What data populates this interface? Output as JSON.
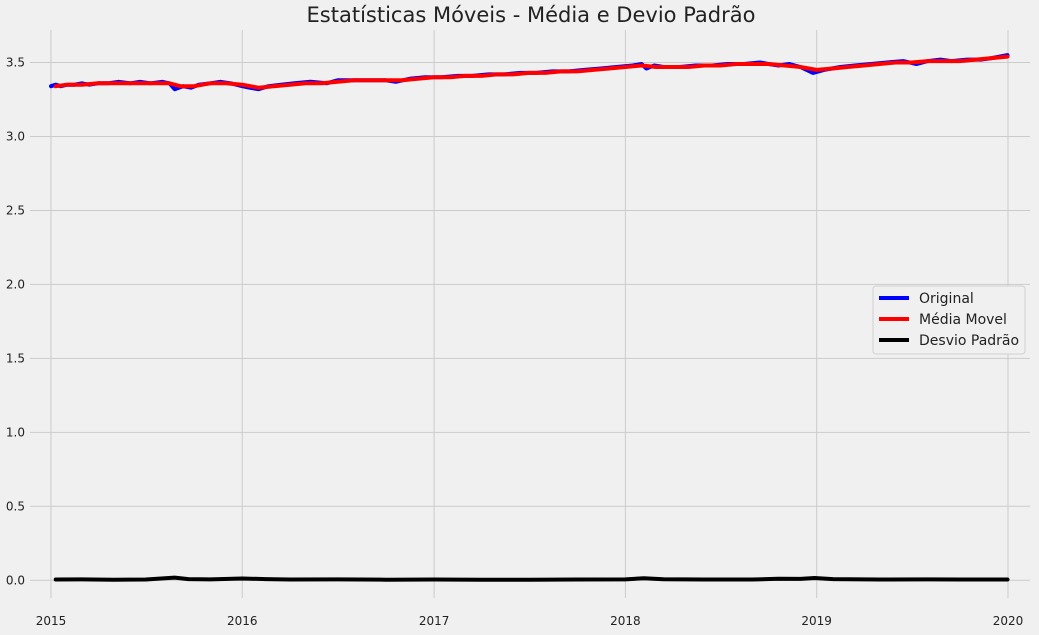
{
  "chart_data": {
    "type": "line",
    "title": "Estatísticas Móveis - Média e Devio Padrão",
    "xlabel": "",
    "ylabel": "",
    "x_axis": {
      "type": "date",
      "range": [
        "2014-11-22",
        "2020-02-12"
      ],
      "ticks": [
        {
          "value": "2015-01-01",
          "label": "2015"
        },
        {
          "value": "2016-01-01",
          "label": "2016"
        },
        {
          "value": "2017-01-01",
          "label": "2017"
        },
        {
          "value": "2018-01-01",
          "label": "2018"
        },
        {
          "value": "2019-01-01",
          "label": "2019"
        },
        {
          "value": "2020-01-01",
          "label": "2020"
        }
      ]
    },
    "y_axis": {
      "range": [
        -0.12,
        3.72
      ],
      "ticks": [
        {
          "value": 0.0,
          "label": "0.0"
        },
        {
          "value": 0.5,
          "label": "0.5"
        },
        {
          "value": 1.0,
          "label": "1.0"
        },
        {
          "value": 1.5,
          "label": "1.5"
        },
        {
          "value": 2.0,
          "label": "2.0"
        },
        {
          "value": 2.5,
          "label": "2.5"
        },
        {
          "value": 3.0,
          "label": "3.0"
        },
        {
          "value": 3.5,
          "label": "3.5"
        }
      ]
    },
    "grid": true,
    "legend": {
      "position": "center-right"
    },
    "series": [
      {
        "name": "Original",
        "color": "#0000ff",
        "points": [
          [
            "2015-01-01",
            3.34
          ],
          [
            "2015-01-10",
            3.35
          ],
          [
            "2015-01-20",
            3.34
          ],
          [
            "2015-02-01",
            3.35
          ],
          [
            "2015-02-15",
            3.35
          ],
          [
            "2015-03-01",
            3.36
          ],
          [
            "2015-03-15",
            3.35
          ],
          [
            "2015-04-01",
            3.36
          ],
          [
            "2015-04-20",
            3.36
          ],
          [
            "2015-05-10",
            3.37
          ],
          [
            "2015-06-01",
            3.36
          ],
          [
            "2015-06-20",
            3.37
          ],
          [
            "2015-07-10",
            3.36
          ],
          [
            "2015-08-01",
            3.37
          ],
          [
            "2015-08-15",
            3.36
          ],
          [
            "2015-08-25",
            3.32
          ],
          [
            "2015-09-10",
            3.34
          ],
          [
            "2015-09-25",
            3.33
          ],
          [
            "2015-10-10",
            3.35
          ],
          [
            "2015-11-01",
            3.36
          ],
          [
            "2015-11-20",
            3.37
          ],
          [
            "2015-12-10",
            3.36
          ],
          [
            "2016-01-01",
            3.34
          ],
          [
            "2016-01-15",
            3.33
          ],
          [
            "2016-02-01",
            3.32
          ],
          [
            "2016-02-20",
            3.34
          ],
          [
            "2016-03-15",
            3.35
          ],
          [
            "2016-04-10",
            3.36
          ],
          [
            "2016-05-10",
            3.37
          ],
          [
            "2016-06-10",
            3.36
          ],
          [
            "2016-07-01",
            3.38
          ],
          [
            "2016-08-01",
            3.38
          ],
          [
            "2016-09-01",
            3.38
          ],
          [
            "2016-10-01",
            3.38
          ],
          [
            "2016-10-20",
            3.37
          ],
          [
            "2016-11-15",
            3.39
          ],
          [
            "2016-12-15",
            3.4
          ],
          [
            "2017-01-15",
            3.4
          ],
          [
            "2017-02-15",
            3.41
          ],
          [
            "2017-03-15",
            3.41
          ],
          [
            "2017-04-15",
            3.42
          ],
          [
            "2017-05-15",
            3.42
          ],
          [
            "2017-06-15",
            3.43
          ],
          [
            "2017-07-15",
            3.43
          ],
          [
            "2017-08-15",
            3.44
          ],
          [
            "2017-09-15",
            3.44
          ],
          [
            "2017-10-15",
            3.45
          ],
          [
            "2017-11-15",
            3.46
          ],
          [
            "2017-12-15",
            3.47
          ],
          [
            "2018-01-15",
            3.48
          ],
          [
            "2018-02-01",
            3.49
          ],
          [
            "2018-02-10",
            3.46
          ],
          [
            "2018-02-25",
            3.48
          ],
          [
            "2018-03-15",
            3.47
          ],
          [
            "2018-04-15",
            3.47
          ],
          [
            "2018-05-15",
            3.48
          ],
          [
            "2018-06-15",
            3.48
          ],
          [
            "2018-07-15",
            3.49
          ],
          [
            "2018-08-15",
            3.49
          ],
          [
            "2018-09-15",
            3.5
          ],
          [
            "2018-10-01",
            3.49
          ],
          [
            "2018-10-20",
            3.48
          ],
          [
            "2018-11-10",
            3.49
          ],
          [
            "2018-12-01",
            3.47
          ],
          [
            "2018-12-25",
            3.43
          ],
          [
            "2019-01-15",
            3.45
          ],
          [
            "2019-02-15",
            3.47
          ],
          [
            "2019-03-15",
            3.48
          ],
          [
            "2019-04-15",
            3.49
          ],
          [
            "2019-05-15",
            3.5
          ],
          [
            "2019-06-15",
            3.51
          ],
          [
            "2019-07-10",
            3.49
          ],
          [
            "2019-08-01",
            3.51
          ],
          [
            "2019-08-25",
            3.52
          ],
          [
            "2019-09-15",
            3.51
          ],
          [
            "2019-10-15",
            3.52
          ],
          [
            "2019-11-10",
            3.52
          ],
          [
            "2019-12-01",
            3.53
          ],
          [
            "2019-12-31",
            3.55
          ]
        ]
      },
      {
        "name": "Média Movel",
        "color": "#ff0000",
        "points": [
          [
            "2015-01-10",
            3.34
          ],
          [
            "2015-02-01",
            3.35
          ],
          [
            "2015-03-01",
            3.35
          ],
          [
            "2015-04-01",
            3.36
          ],
          [
            "2015-05-01",
            3.36
          ],
          [
            "2015-06-01",
            3.36
          ],
          [
            "2015-07-01",
            3.36
          ],
          [
            "2015-08-15",
            3.36
          ],
          [
            "2015-09-05",
            3.34
          ],
          [
            "2015-10-01",
            3.34
          ],
          [
            "2015-11-01",
            3.36
          ],
          [
            "2015-12-01",
            3.36
          ],
          [
            "2016-01-01",
            3.35
          ],
          [
            "2016-02-01",
            3.33
          ],
          [
            "2016-03-01",
            3.34
          ],
          [
            "2016-04-01",
            3.35
          ],
          [
            "2016-05-01",
            3.36
          ],
          [
            "2016-06-01",
            3.36
          ],
          [
            "2016-07-01",
            3.37
          ],
          [
            "2016-08-01",
            3.38
          ],
          [
            "2016-09-01",
            3.38
          ],
          [
            "2016-10-01",
            3.38
          ],
          [
            "2016-11-01",
            3.38
          ],
          [
            "2016-12-01",
            3.39
          ],
          [
            "2017-01-01",
            3.4
          ],
          [
            "2017-02-01",
            3.4
          ],
          [
            "2017-03-01",
            3.41
          ],
          [
            "2017-04-01",
            3.41
          ],
          [
            "2017-05-01",
            3.42
          ],
          [
            "2017-06-01",
            3.42
          ],
          [
            "2017-07-01",
            3.43
          ],
          [
            "2017-08-01",
            3.43
          ],
          [
            "2017-09-01",
            3.44
          ],
          [
            "2017-10-01",
            3.44
          ],
          [
            "2017-11-01",
            3.45
          ],
          [
            "2017-12-01",
            3.46
          ],
          [
            "2018-01-01",
            3.47
          ],
          [
            "2018-02-01",
            3.48
          ],
          [
            "2018-03-01",
            3.47
          ],
          [
            "2018-04-01",
            3.47
          ],
          [
            "2018-05-01",
            3.47
          ],
          [
            "2018-06-01",
            3.48
          ],
          [
            "2018-07-01",
            3.48
          ],
          [
            "2018-08-01",
            3.49
          ],
          [
            "2018-09-01",
            3.49
          ],
          [
            "2018-10-01",
            3.49
          ],
          [
            "2018-11-01",
            3.48
          ],
          [
            "2018-12-01",
            3.47
          ],
          [
            "2019-01-01",
            3.45
          ],
          [
            "2019-02-01",
            3.46
          ],
          [
            "2019-03-01",
            3.47
          ],
          [
            "2019-04-01",
            3.48
          ],
          [
            "2019-05-01",
            3.49
          ],
          [
            "2019-06-01",
            3.5
          ],
          [
            "2019-07-01",
            3.5
          ],
          [
            "2019-08-01",
            3.51
          ],
          [
            "2019-09-01",
            3.51
          ],
          [
            "2019-10-01",
            3.51
          ],
          [
            "2019-11-01",
            3.52
          ],
          [
            "2019-12-01",
            3.53
          ],
          [
            "2019-12-31",
            3.54
          ]
        ]
      },
      {
        "name": "Desvio Padrão",
        "color": "#000000",
        "points": [
          [
            "2015-01-10",
            0.005
          ],
          [
            "2015-03-01",
            0.006
          ],
          [
            "2015-05-01",
            0.004
          ],
          [
            "2015-07-01",
            0.005
          ],
          [
            "2015-08-25",
            0.018
          ],
          [
            "2015-09-20",
            0.008
          ],
          [
            "2015-11-01",
            0.006
          ],
          [
            "2016-01-01",
            0.012
          ],
          [
            "2016-02-15",
            0.008
          ],
          [
            "2016-04-01",
            0.005
          ],
          [
            "2016-07-01",
            0.006
          ],
          [
            "2016-10-01",
            0.004
          ],
          [
            "2017-01-01",
            0.005
          ],
          [
            "2017-04-01",
            0.004
          ],
          [
            "2017-07-01",
            0.004
          ],
          [
            "2017-10-01",
            0.005
          ],
          [
            "2018-01-01",
            0.006
          ],
          [
            "2018-02-05",
            0.014
          ],
          [
            "2018-03-15",
            0.007
          ],
          [
            "2018-06-01",
            0.005
          ],
          [
            "2018-09-01",
            0.005
          ],
          [
            "2018-10-20",
            0.01
          ],
          [
            "2018-12-01",
            0.009
          ],
          [
            "2018-12-28",
            0.015
          ],
          [
            "2019-02-01",
            0.008
          ],
          [
            "2019-05-01",
            0.005
          ],
          [
            "2019-08-01",
            0.006
          ],
          [
            "2019-10-01",
            0.005
          ],
          [
            "2019-12-31",
            0.005
          ]
        ]
      }
    ]
  }
}
